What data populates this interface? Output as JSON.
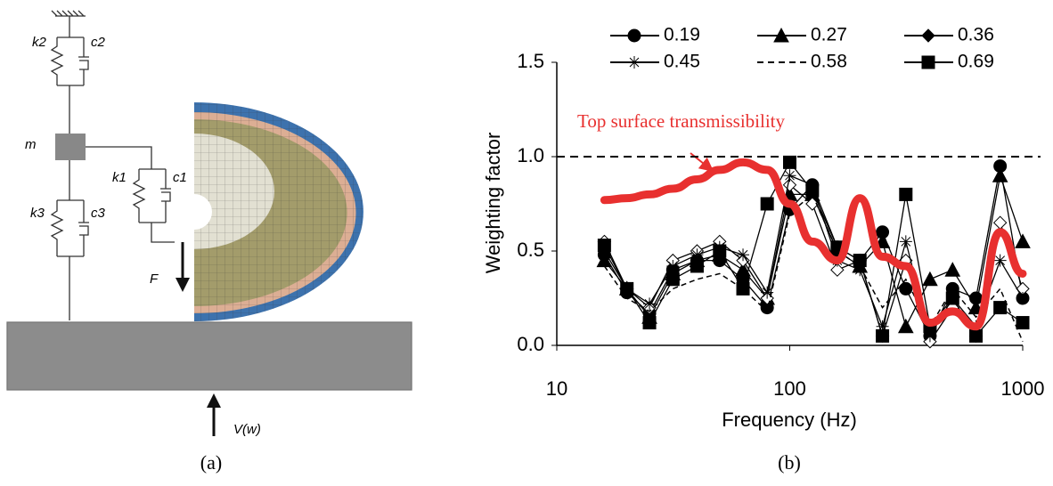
{
  "diagram": {
    "labels": {
      "k2": "k2",
      "c2": "c2",
      "m": "m",
      "k1": "k1",
      "c1": "c1",
      "k3": "k3",
      "c3": "c3",
      "F": "F",
      "V": "V(w)"
    },
    "caption": "(a)"
  },
  "caption_b": "(b)",
  "chart_data": {
    "type": "line",
    "x_label": "Frequency (Hz)",
    "y_label": "Weighting factor",
    "x": [
      16,
      20,
      25,
      31.5,
      40,
      50,
      63,
      80,
      100,
      125,
      160,
      200,
      250,
      315,
      400,
      500,
      630,
      800,
      1000
    ],
    "xlim": [
      10,
      1000
    ],
    "xticks": [
      10,
      100,
      1000
    ],
    "log_x": true,
    "ylim": [
      0,
      1.5
    ],
    "yticks": [
      {
        "value": 0,
        "label": "0.0"
      },
      {
        "value": 0.5,
        "label": "0.5"
      },
      {
        "value": 1,
        "label": "1.0"
      },
      1.5
    ],
    "hline": {
      "value": 1,
      "color": "#000000"
    },
    "series": [
      {
        "name": "0.19",
        "marker": "circle",
        "color": "#000000",
        "values": [
          0.48,
          0.28,
          0.17,
          0.4,
          0.45,
          0.45,
          0.35,
          0.2,
          0.72,
          0.85,
          0.52,
          0.45,
          0.6,
          0.3,
          0.05,
          0.3,
          0.25,
          0.95,
          0.25
        ]
      },
      {
        "name": "0.27",
        "marker": "triangle",
        "color": "#000000",
        "values": [
          0.45,
          0.3,
          0.15,
          0.38,
          0.45,
          0.48,
          0.4,
          0.25,
          0.8,
          0.8,
          0.5,
          0.42,
          0.55,
          0.1,
          0.35,
          0.4,
          0.2,
          0.9,
          0.55
        ]
      },
      {
        "name": "0.36",
        "marker": "diamond",
        "color": "#000000",
        "values": [
          0.55,
          0.3,
          0.2,
          0.45,
          0.5,
          0.55,
          0.45,
          0.25,
          0.85,
          0.75,
          0.4,
          0.45,
          0.05,
          0.45,
          0.02,
          0.2,
          0.05,
          0.65,
          0.3
        ]
      },
      {
        "name": "0.45",
        "marker": "asterisk",
        "color": "#000000",
        "values": [
          0.5,
          0.3,
          0.22,
          0.42,
          0.48,
          0.52,
          0.48,
          0.28,
          0.9,
          0.85,
          0.45,
          0.4,
          0.1,
          0.55,
          0.05,
          0.25,
          0.1,
          0.45,
          0.25
        ]
      },
      {
        "name": "0.58",
        "marker": "none",
        "dash": true,
        "color": "#000000",
        "values": [
          0.42,
          0.25,
          0.18,
          0.3,
          0.35,
          0.38,
          0.3,
          0.18,
          0.7,
          0.8,
          0.5,
          0.42,
          0.2,
          0.35,
          0.1,
          0.3,
          0.15,
          0.3,
          0.02
        ]
      },
      {
        "name": "0.69",
        "marker": "square",
        "color": "#000000",
        "values": [
          0.53,
          0.3,
          0.12,
          0.35,
          0.42,
          0.5,
          0.3,
          0.75,
          0.97,
          0.82,
          0.52,
          0.45,
          0.05,
          0.8,
          0.1,
          0.25,
          0.05,
          0.2,
          0.12
        ]
      }
    ],
    "annotation": {
      "text": "Top surface transmissibility",
      "color": "#e8302f",
      "values": [
        0.77,
        0.78,
        0.8,
        0.83,
        0.88,
        0.93,
        0.97,
        0.93,
        0.75,
        0.55,
        0.45,
        0.78,
        0.47,
        0.42,
        0.12,
        0.18,
        0.1,
        0.6,
        0.38
      ]
    },
    "legend_position": "top"
  }
}
